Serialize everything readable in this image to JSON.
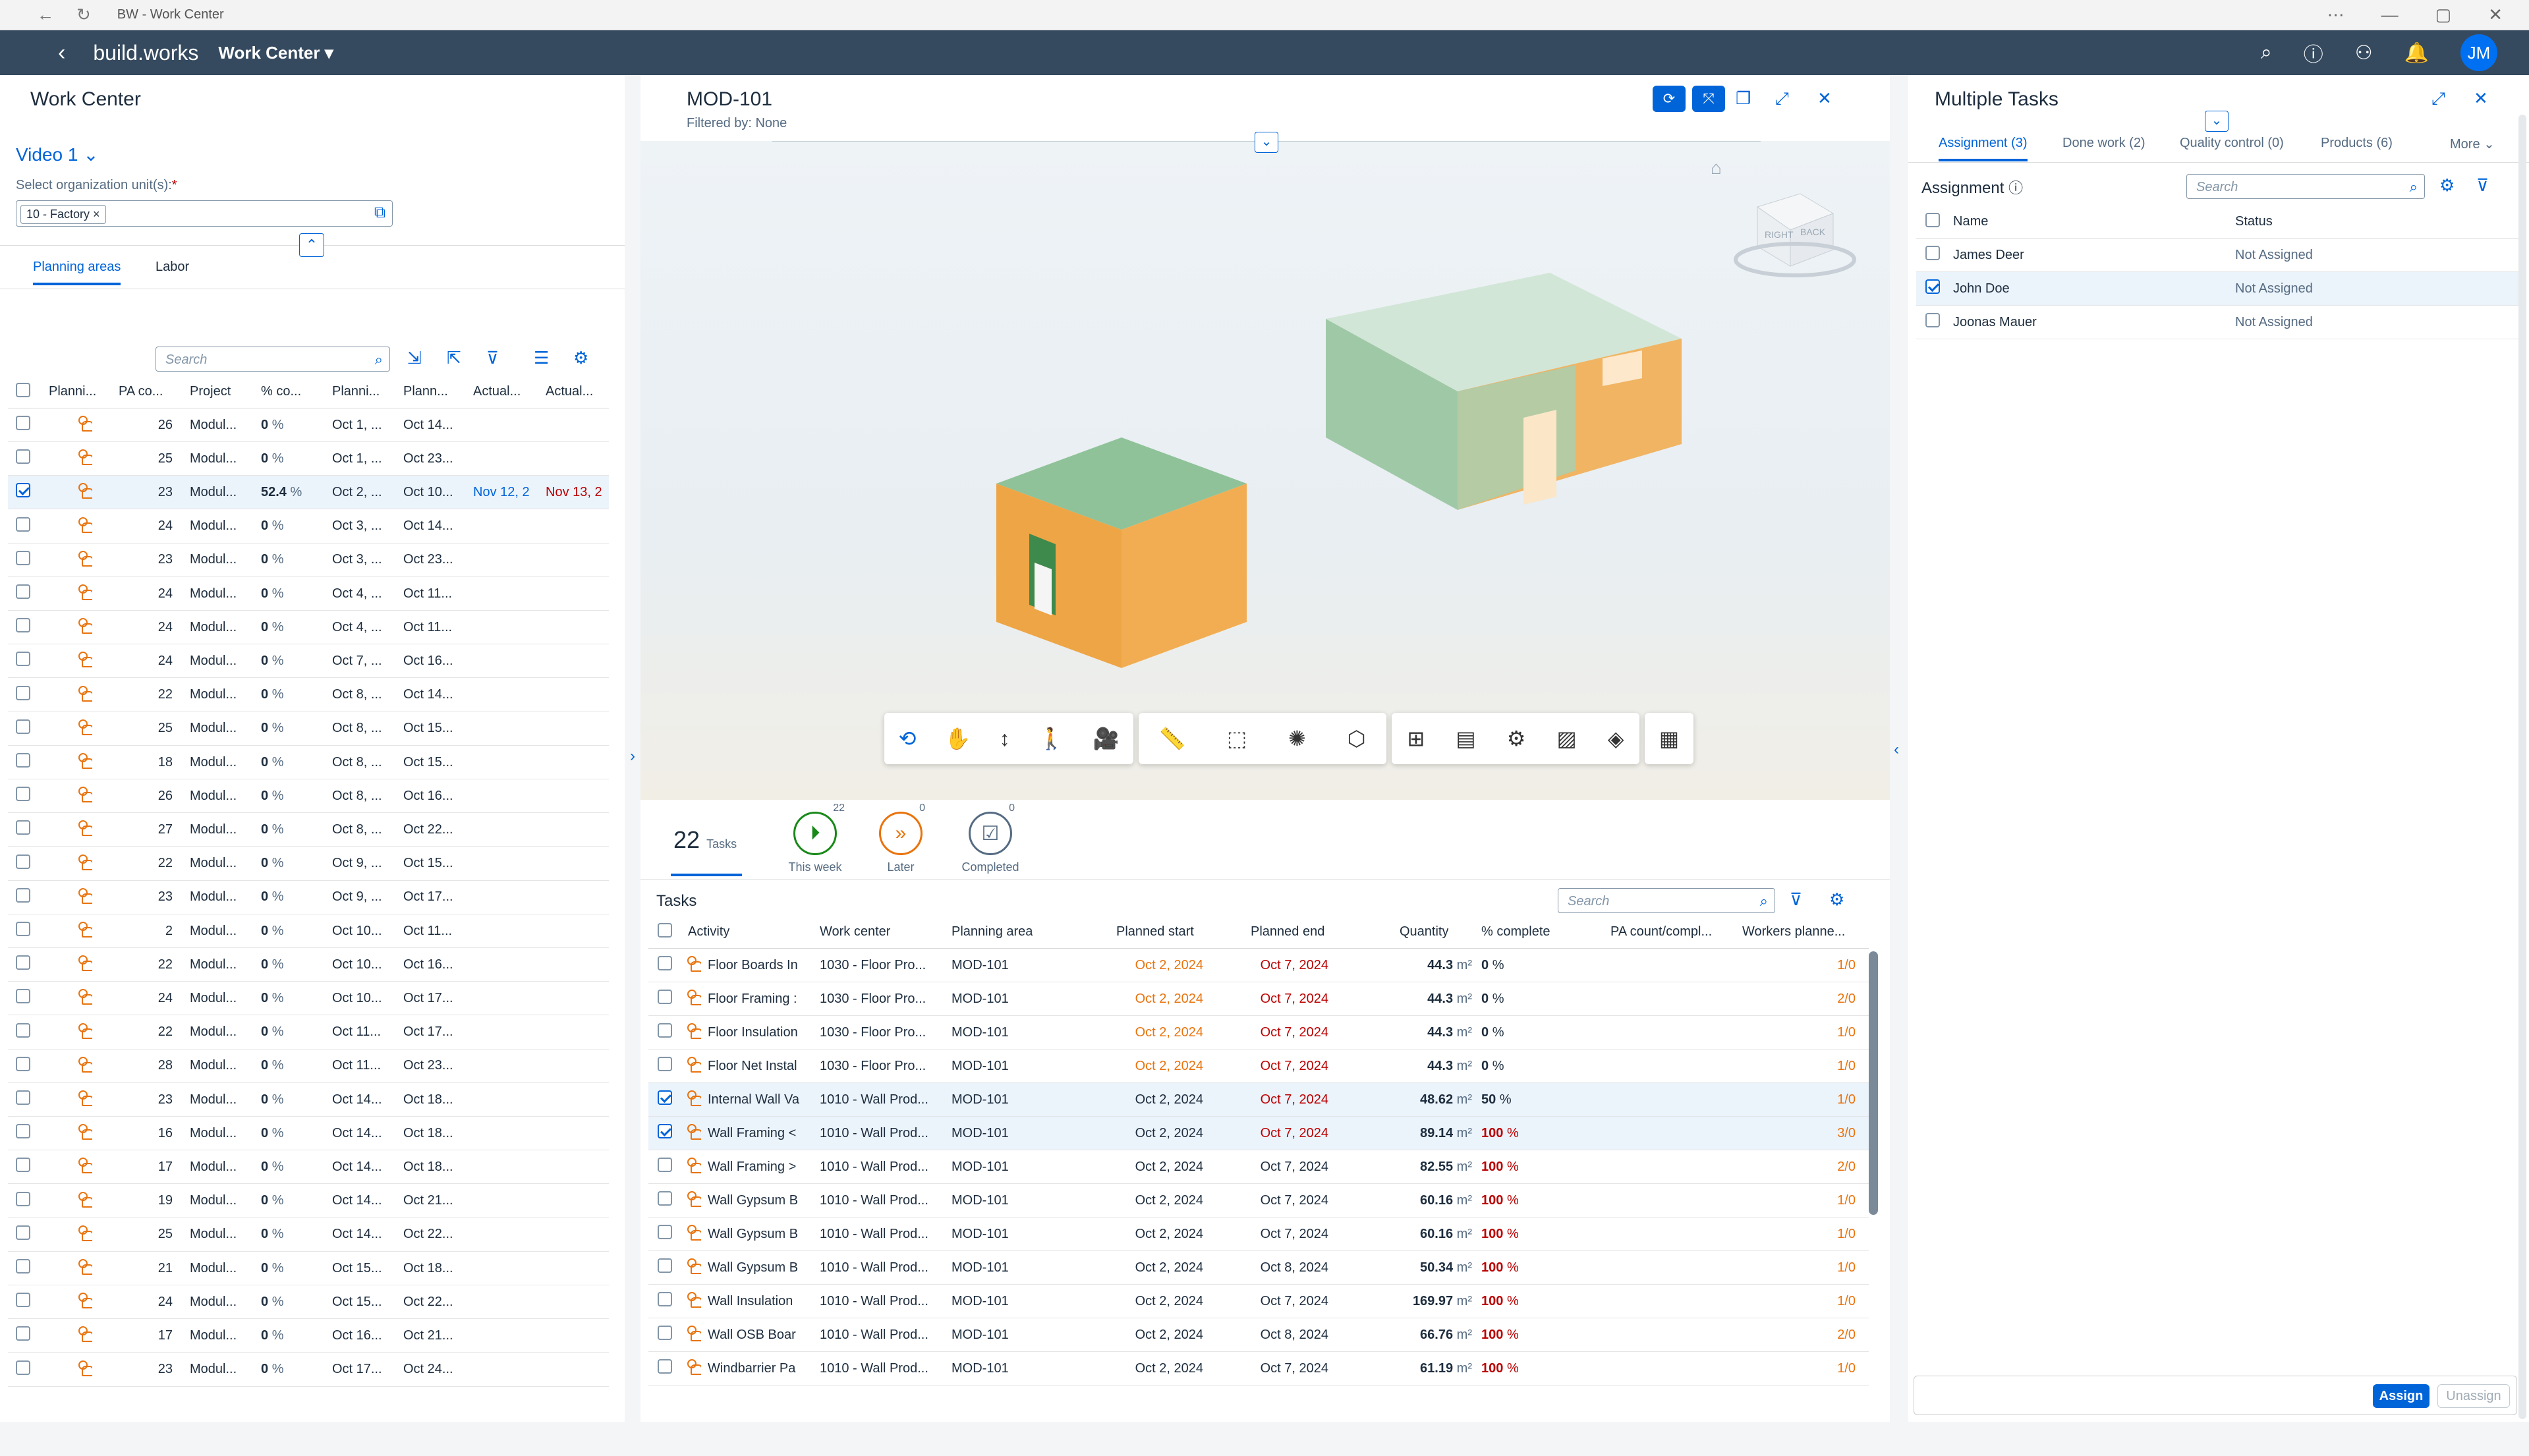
{
  "browser": {
    "title": "BW - Work Center"
  },
  "shell": {
    "logo": "build.works",
    "app": "Work Center",
    "avatar": "JM"
  },
  "left": {
    "title": "Work Center",
    "variant": "Video 1",
    "org_label": "Select organization unit(s):",
    "org_token": "10 - Factory",
    "tabs": [
      "Planning areas",
      "Labor"
    ],
    "search_placeholder": "Search",
    "columns": [
      "Planni...",
      "PA co...",
      "Project",
      "% co...",
      "Planni...",
      "Plann...",
      "Actual...",
      "Actual..."
    ],
    "rows": [
      {
        "pa": "26",
        "project": "Modul...",
        "pct": "0",
        "ps": "Oct 1, ...",
        "pe": "Oct 14...",
        "as": "",
        "ae": ""
      },
      {
        "pa": "25",
        "project": "Modul...",
        "pct": "0",
        "ps": "Oct 1, ...",
        "pe": "Oct 23...",
        "as": "",
        "ae": ""
      },
      {
        "pa": "23",
        "project": "Modul...",
        "pct": "52.4",
        "ps": "Oct 2, ...",
        "pe": "Oct 10...",
        "as": "Nov 12, 2",
        "ae": "Nov 13, 2",
        "sel": true
      },
      {
        "pa": "24",
        "project": "Modul...",
        "pct": "0",
        "ps": "Oct 3, ...",
        "pe": "Oct 14...",
        "as": "",
        "ae": ""
      },
      {
        "pa": "23",
        "project": "Modul...",
        "pct": "0",
        "ps": "Oct 3, ...",
        "pe": "Oct 23...",
        "as": "",
        "ae": ""
      },
      {
        "pa": "24",
        "project": "Modul...",
        "pct": "0",
        "ps": "Oct 4, ...",
        "pe": "Oct 11...",
        "as": "",
        "ae": ""
      },
      {
        "pa": "24",
        "project": "Modul...",
        "pct": "0",
        "ps": "Oct 4, ...",
        "pe": "Oct 11...",
        "as": "",
        "ae": ""
      },
      {
        "pa": "24",
        "project": "Modul...",
        "pct": "0",
        "ps": "Oct 7, ...",
        "pe": "Oct 16...",
        "as": "",
        "ae": ""
      },
      {
        "pa": "22",
        "project": "Modul...",
        "pct": "0",
        "ps": "Oct 8, ...",
        "pe": "Oct 14...",
        "as": "",
        "ae": ""
      },
      {
        "pa": "25",
        "project": "Modul...",
        "pct": "0",
        "ps": "Oct 8, ...",
        "pe": "Oct 15...",
        "as": "",
        "ae": ""
      },
      {
        "pa": "18",
        "project": "Modul...",
        "pct": "0",
        "ps": "Oct 8, ...",
        "pe": "Oct 15...",
        "as": "",
        "ae": ""
      },
      {
        "pa": "26",
        "project": "Modul...",
        "pct": "0",
        "ps": "Oct 8, ...",
        "pe": "Oct 16...",
        "as": "",
        "ae": ""
      },
      {
        "pa": "27",
        "project": "Modul...",
        "pct": "0",
        "ps": "Oct 8, ...",
        "pe": "Oct 22...",
        "as": "",
        "ae": ""
      },
      {
        "pa": "22",
        "project": "Modul...",
        "pct": "0",
        "ps": "Oct 9, ...",
        "pe": "Oct 15...",
        "as": "",
        "ae": ""
      },
      {
        "pa": "23",
        "project": "Modul...",
        "pct": "0",
        "ps": "Oct 9, ...",
        "pe": "Oct 17...",
        "as": "",
        "ae": ""
      },
      {
        "pa": "2",
        "project": "Modul...",
        "pct": "0",
        "ps": "Oct 10...",
        "pe": "Oct 11...",
        "as": "",
        "ae": ""
      },
      {
        "pa": "22",
        "project": "Modul...",
        "pct": "0",
        "ps": "Oct 10...",
        "pe": "Oct 16...",
        "as": "",
        "ae": ""
      },
      {
        "pa": "24",
        "project": "Modul...",
        "pct": "0",
        "ps": "Oct 10...",
        "pe": "Oct 17...",
        "as": "",
        "ae": ""
      },
      {
        "pa": "22",
        "project": "Modul...",
        "pct": "0",
        "ps": "Oct 11...",
        "pe": "Oct 17...",
        "as": "",
        "ae": ""
      },
      {
        "pa": "28",
        "project": "Modul...",
        "pct": "0",
        "ps": "Oct 11...",
        "pe": "Oct 23...",
        "as": "",
        "ae": ""
      },
      {
        "pa": "23",
        "project": "Modul...",
        "pct": "0",
        "ps": "Oct 14...",
        "pe": "Oct 18...",
        "as": "",
        "ae": ""
      },
      {
        "pa": "16",
        "project": "Modul...",
        "pct": "0",
        "ps": "Oct 14...",
        "pe": "Oct 18...",
        "as": "",
        "ae": ""
      },
      {
        "pa": "17",
        "project": "Modul...",
        "pct": "0",
        "ps": "Oct 14...",
        "pe": "Oct 18...",
        "as": "",
        "ae": ""
      },
      {
        "pa": "19",
        "project": "Modul...",
        "pct": "0",
        "ps": "Oct 14...",
        "pe": "Oct 21...",
        "as": "",
        "ae": ""
      },
      {
        "pa": "25",
        "project": "Modul...",
        "pct": "0",
        "ps": "Oct 14...",
        "pe": "Oct 22...",
        "as": "",
        "ae": ""
      },
      {
        "pa": "21",
        "project": "Modul...",
        "pct": "0",
        "ps": "Oct 15...",
        "pe": "Oct 18...",
        "as": "",
        "ae": ""
      },
      {
        "pa": "24",
        "project": "Modul...",
        "pct": "0",
        "ps": "Oct 15...",
        "pe": "Oct 22...",
        "as": "",
        "ae": ""
      },
      {
        "pa": "17",
        "project": "Modul...",
        "pct": "0",
        "ps": "Oct 16...",
        "pe": "Oct 21...",
        "as": "",
        "ae": ""
      },
      {
        "pa": "23",
        "project": "Modul...",
        "pct": "0",
        "ps": "Oct 17...",
        "pe": "Oct 24...",
        "as": "",
        "ae": ""
      }
    ],
    "pct_unit": "%"
  },
  "mid": {
    "title": "MOD-101",
    "subtitle": "Filtered by: None",
    "viewcube": [
      "RIGHT",
      "BACK"
    ],
    "kpis": [
      {
        "value": "22",
        "label": "Tasks"
      },
      {
        "count": "22",
        "label": "This week"
      },
      {
        "count": "0",
        "label": "Later"
      },
      {
        "count": "0",
        "label": "Completed"
      }
    ],
    "tasks_title": "Tasks",
    "search_placeholder": "Search",
    "columns": [
      "Activity",
      "Work center",
      "Planning area",
      "Planned start",
      "Planned end",
      "Quantity",
      "% complete",
      "PA count/compl...",
      "Workers planne..."
    ],
    "unit": "m²",
    "rows": [
      {
        "act": "Floor Boards In",
        "wc": "1030 - Floor Pro...",
        "pa": "MOD-101",
        "ps": "Oct 2, 2024",
        "pe": "Oct 7, 2024",
        "qty": "44.3",
        "pct": "0",
        "wp": "1/0",
        "psc": "orange",
        "pec": "red",
        "pctc": "n"
      },
      {
        "act": "Floor Framing :",
        "wc": "1030 - Floor Pro...",
        "pa": "MOD-101",
        "ps": "Oct 2, 2024",
        "pe": "Oct 7, 2024",
        "qty": "44.3",
        "pct": "0",
        "wp": "2/0",
        "psc": "orange",
        "pec": "red",
        "pctc": "n"
      },
      {
        "act": "Floor Insulation",
        "wc": "1030 - Floor Pro...",
        "pa": "MOD-101",
        "ps": "Oct 2, 2024",
        "pe": "Oct 7, 2024",
        "qty": "44.3",
        "pct": "0",
        "wp": "1/0",
        "psc": "orange",
        "pec": "red",
        "pctc": "n"
      },
      {
        "act": "Floor Net Instal",
        "wc": "1030 - Floor Pro...",
        "pa": "MOD-101",
        "ps": "Oct 2, 2024",
        "pe": "Oct 7, 2024",
        "qty": "44.3",
        "pct": "0",
        "wp": "1/0",
        "psc": "orange",
        "pec": "red",
        "pctc": "n"
      },
      {
        "act": "Internal Wall Va",
        "wc": "1010 - Wall Prod...",
        "pa": "MOD-101",
        "ps": "Oct 2, 2024",
        "pe": "Oct 7, 2024",
        "qty": "48.62",
        "pct": "50",
        "wp": "1/0",
        "psc": "n",
        "pec": "red",
        "pctc": "n",
        "sel": true
      },
      {
        "act": "Wall Framing <",
        "wc": "1010 - Wall Prod...",
        "pa": "MOD-101",
        "ps": "Oct 2, 2024",
        "pe": "Oct 7, 2024",
        "qty": "89.14",
        "pct": "100",
        "wp": "3/0",
        "psc": "n",
        "pec": "red",
        "pctc": "red",
        "sel": true
      },
      {
        "act": "Wall Framing >",
        "wc": "1010 - Wall Prod...",
        "pa": "MOD-101",
        "ps": "Oct 2, 2024",
        "pe": "Oct 7, 2024",
        "qty": "82.55",
        "pct": "100",
        "wp": "2/0",
        "psc": "n",
        "pec": "n",
        "pctc": "red"
      },
      {
        "act": "Wall Gypsum B",
        "wc": "1010 - Wall Prod...",
        "pa": "MOD-101",
        "ps": "Oct 2, 2024",
        "pe": "Oct 7, 2024",
        "qty": "60.16",
        "pct": "100",
        "wp": "1/0",
        "psc": "n",
        "pec": "n",
        "pctc": "red"
      },
      {
        "act": "Wall Gypsum B",
        "wc": "1010 - Wall Prod...",
        "pa": "MOD-101",
        "ps": "Oct 2, 2024",
        "pe": "Oct 7, 2024",
        "qty": "60.16",
        "pct": "100",
        "wp": "1/0",
        "psc": "n",
        "pec": "n",
        "pctc": "red"
      },
      {
        "act": "Wall Gypsum B",
        "wc": "1010 - Wall Prod...",
        "pa": "MOD-101",
        "ps": "Oct 2, 2024",
        "pe": "Oct 8, 2024",
        "qty": "50.34",
        "pct": "100",
        "wp": "1/0",
        "psc": "n",
        "pec": "n",
        "pctc": "red"
      },
      {
        "act": "Wall Insulation",
        "wc": "1010 - Wall Prod...",
        "pa": "MOD-101",
        "ps": "Oct 2, 2024",
        "pe": "Oct 7, 2024",
        "qty": "169.97",
        "pct": "100",
        "wp": "1/0",
        "psc": "n",
        "pec": "n",
        "pctc": "red"
      },
      {
        "act": "Wall OSB Boar",
        "wc": "1010 - Wall Prod...",
        "pa": "MOD-101",
        "ps": "Oct 2, 2024",
        "pe": "Oct 8, 2024",
        "qty": "66.76",
        "pct": "100",
        "wp": "2/0",
        "psc": "n",
        "pec": "n",
        "pctc": "red"
      },
      {
        "act": "Windbarrier Pa",
        "wc": "1010 - Wall Prod...",
        "pa": "MOD-101",
        "ps": "Oct 2, 2024",
        "pe": "Oct 7, 2024",
        "qty": "61.19",
        "pct": "100",
        "wp": "1/0",
        "psc": "n",
        "pec": "n",
        "pctc": "red"
      }
    ]
  },
  "right": {
    "title": "Multiple Tasks",
    "tabs": [
      "Assignment (3)",
      "Done work (2)",
      "Quality control (0)",
      "Products (6)",
      "More"
    ],
    "section": "Assignment",
    "search_placeholder": "Search",
    "columns": [
      "Name",
      "Status"
    ],
    "rows": [
      {
        "name": "James Deer",
        "status": "Not Assigned"
      },
      {
        "name": "John Doe",
        "status": "Not Assigned",
        "sel": true
      },
      {
        "name": "Joonas Mauer",
        "status": "Not Assigned"
      }
    ],
    "assign": "Assign",
    "unassign": "Unassign"
  },
  "colors": {
    "shell": "#354a5f",
    "accent": "#0064d9",
    "orange": "#e9730c",
    "red": "#bb0000"
  }
}
